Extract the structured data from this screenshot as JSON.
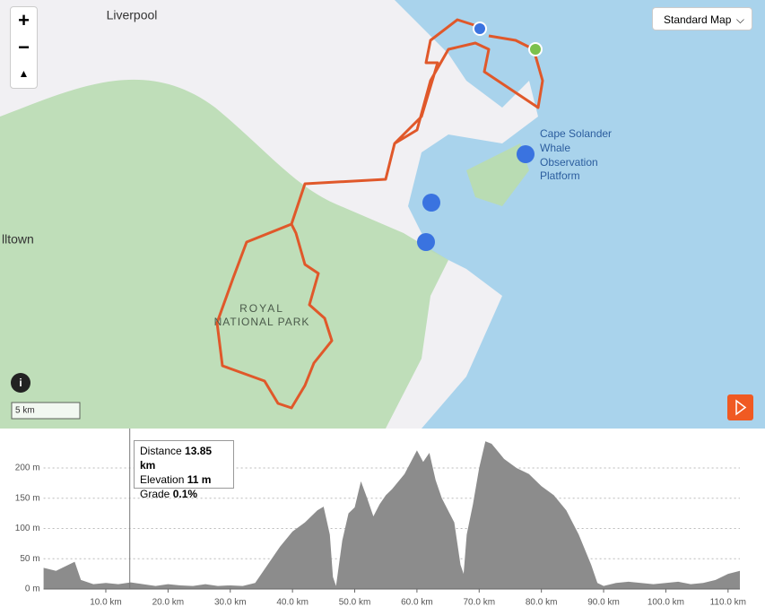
{
  "map": {
    "labels": [
      "Liverpool",
      "lltown",
      "ROYAL",
      "NATIONAL PARK",
      "Cape Solander",
      "Whale",
      "Observation",
      "Platform"
    ],
    "zoom_in": "+",
    "zoom_out": "−",
    "map_style": "Standard Map",
    "scale": "5 km",
    "info": "i"
  },
  "tooltip": {
    "distance_label": "Distance",
    "distance": "13.85 km",
    "elevation_label": "Elevation",
    "elevation": "11 m",
    "grade_label": "Grade",
    "grade": "0.1%"
  },
  "chart_data": {
    "type": "area",
    "color": "#8c8c8c",
    "x": [
      0,
      2,
      4,
      5,
      6,
      8,
      10,
      12,
      14,
      16,
      18,
      20,
      22,
      24,
      26,
      28,
      30,
      32,
      34,
      35,
      36,
      38,
      40,
      42,
      44,
      45,
      46,
      46.5,
      47,
      48,
      49,
      50,
      51,
      52,
      53,
      54,
      55,
      56,
      58,
      60,
      61,
      62,
      63,
      64,
      66,
      67,
      67.5,
      68,
      69,
      70,
      71,
      72,
      74,
      76,
      78,
      80,
      82,
      84,
      86,
      88,
      89,
      90,
      92,
      94,
      96,
      98,
      100,
      102,
      104,
      106,
      108,
      110,
      111.9
    ],
    "values": [
      35,
      30,
      40,
      45,
      15,
      8,
      10,
      8,
      11,
      8,
      5,
      8,
      6,
      5,
      8,
      5,
      6,
      5,
      10,
      25,
      40,
      70,
      95,
      110,
      130,
      136,
      90,
      20,
      5,
      80,
      125,
      135,
      178,
      150,
      120,
      140,
      155,
      165,
      190,
      229,
      210,
      225,
      180,
      150,
      110,
      40,
      25,
      90,
      140,
      200,
      244,
      240,
      215,
      200,
      190,
      170,
      155,
      130,
      90,
      40,
      10,
      5,
      10,
      12,
      10,
      8,
      10,
      12,
      8,
      10,
      15,
      25,
      30
    ],
    "xlim": [
      0,
      111.9
    ],
    "ylim": [
      0,
      250
    ],
    "xticks": [
      {
        "value": 10,
        "label": "10.0 km"
      },
      {
        "value": 20,
        "label": "20.0 km"
      },
      {
        "value": 30,
        "label": "30.0 km"
      },
      {
        "value": 40,
        "label": "40.0 km"
      },
      {
        "value": 50,
        "label": "50.0 km"
      },
      {
        "value": 60,
        "label": "60.0 km"
      },
      {
        "value": 70,
        "label": "70.0 km"
      },
      {
        "value": 80,
        "label": "80.0 km"
      },
      {
        "value": 90,
        "label": "90.0 km"
      },
      {
        "value": 100,
        "label": "100.0 km"
      },
      {
        "value": 110,
        "label": "110.0 km"
      }
    ],
    "yticks": [
      {
        "value": 0,
        "label": "0 m"
      },
      {
        "value": 50,
        "label": "50 m"
      },
      {
        "value": 100,
        "label": "100 m"
      },
      {
        "value": 150,
        "label": "150 m"
      },
      {
        "value": 200,
        "label": "200 m"
      }
    ],
    "grid": true,
    "cursor": 13.85
  }
}
